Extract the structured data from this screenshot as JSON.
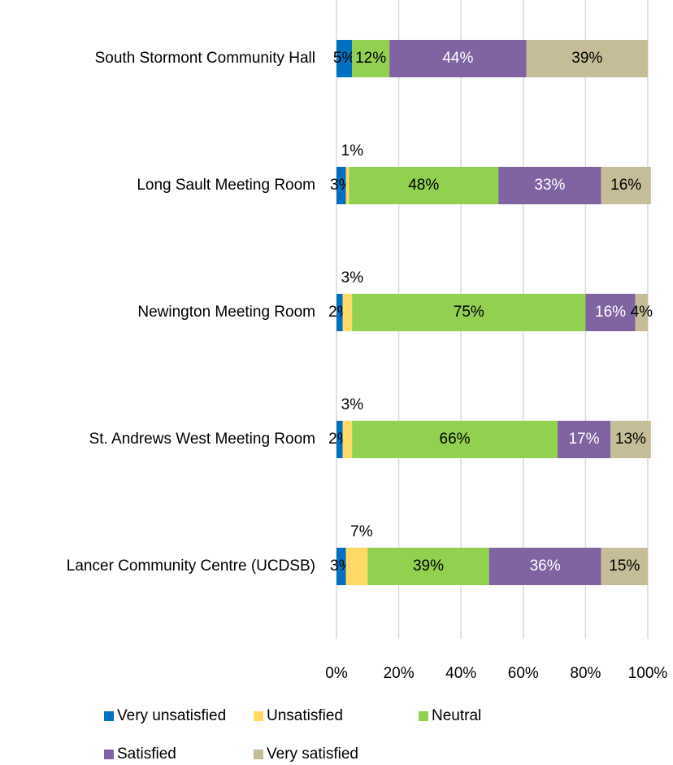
{
  "chart_data": {
    "type": "stacked-barh",
    "categories": [
      "South Stormont Community Hall",
      "Long Sault Meeting Room",
      "Newington Meeting Room",
      "St. Andrews West Meeting Room",
      "Lancer Community Centre (UCDSB)"
    ],
    "series": [
      {
        "name": "Very unsatisfied",
        "color": "#0070c0",
        "values": [
          5,
          3,
          2,
          2,
          3
        ],
        "value_labels": [
          "5%",
          "3%",
          "2%",
          "2%",
          "3%"
        ]
      },
      {
        "name": "Unsatisfied",
        "color": "#ffd966",
        "values": [
          0,
          1,
          3,
          3,
          7
        ],
        "value_labels": [
          null,
          "1%",
          "3%",
          "3%",
          "7%"
        ]
      },
      {
        "name": "Neutral",
        "color": "#92d050",
        "values": [
          12,
          48,
          75,
          66,
          39
        ],
        "value_labels": [
          "12%",
          "48%",
          "75%",
          "66%",
          "39%"
        ]
      },
      {
        "name": "Satisfied",
        "color": "#8064a2",
        "values": [
          44,
          33,
          16,
          17,
          36
        ],
        "value_labels": [
          "44%",
          "33%",
          "16%",
          "17%",
          "36%"
        ]
      },
      {
        "name": "Very satisfied",
        "color": "#c4bd97",
        "values": [
          39,
          16,
          4,
          13,
          15
        ],
        "value_labels": [
          "39%",
          "16%",
          "4%",
          "13%",
          "15%"
        ]
      }
    ],
    "xlim": [
      0,
      100
    ],
    "xticks": [
      {
        "value": 0,
        "label": "0%"
      },
      {
        "value": 20,
        "label": "20%"
      },
      {
        "value": 40,
        "label": "40%"
      },
      {
        "value": 60,
        "label": "60%"
      },
      {
        "value": 80,
        "label": "80%"
      },
      {
        "value": 100,
        "label": "100%"
      }
    ],
    "grid": true,
    "legend": "bottom"
  }
}
